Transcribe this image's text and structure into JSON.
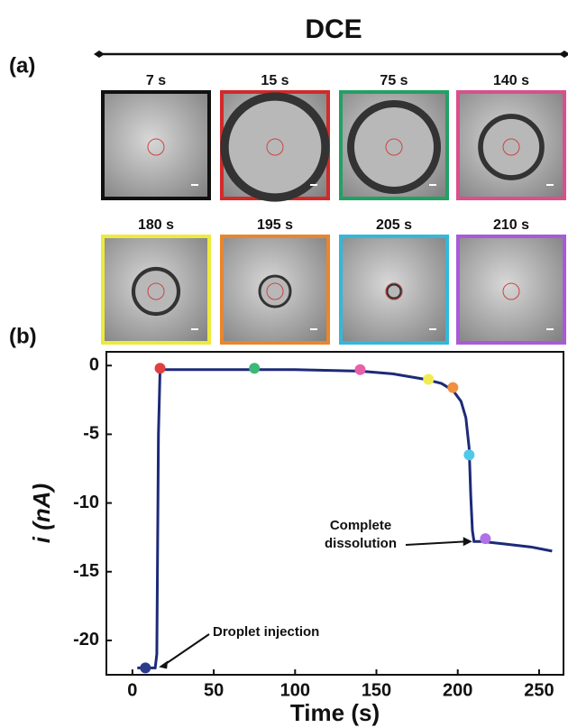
{
  "panel_a": {
    "label": "(a)",
    "title": "DCE",
    "frames": [
      {
        "label": "7 s",
        "color": "#111111"
      },
      {
        "label": "15 s",
        "color": "#d22a2a"
      },
      {
        "label": "75 s",
        "color": "#23a064"
      },
      {
        "label": "140 s",
        "color": "#d8508c"
      },
      {
        "label": "180 s",
        "color": "#eeea3c"
      },
      {
        "label": "195 s",
        "color": "#e8862e"
      },
      {
        "label": "205 s",
        "color": "#33b8d8"
      },
      {
        "label": "210 s",
        "color": "#a95ad8"
      }
    ]
  },
  "chart_data": {
    "type": "line",
    "panel_label": "(b)",
    "xlabel": "Time (s)",
    "ylabel": "i (nA)",
    "xlim": [
      -16,
      265
    ],
    "ylim": [
      -22.5,
      1
    ],
    "xticks": [
      0,
      50,
      100,
      150,
      200,
      250
    ],
    "yticks": [
      0,
      -5,
      -10,
      -15,
      -20
    ],
    "series": [
      {
        "color": "#1c2a78",
        "x": [
          3,
          8,
          14,
          15,
          16,
          17,
          20,
          40,
          75,
          100,
          140,
          160,
          180,
          190,
          197,
          202,
          205,
          207,
          208,
          209,
          210,
          215,
          230,
          245,
          258
        ],
        "values": [
          -22,
          -22,
          -22,
          -21,
          -5,
          -0.3,
          -0.3,
          -0.3,
          -0.3,
          -0.3,
          -0.4,
          -0.6,
          -1.0,
          -1.3,
          -1.8,
          -2.6,
          -3.8,
          -6,
          -9.5,
          -12,
          -12.8,
          -12.8,
          -13,
          -13.2,
          -13.5
        ]
      }
    ],
    "points": {
      "x": [
        8,
        17,
        75,
        140,
        182,
        197,
        207,
        217
      ],
      "values": [
        -22,
        -0.2,
        -0.2,
        -0.3,
        -1.0,
        -1.6,
        -6.5,
        -12.6
      ],
      "colors": [
        "#2a3c8c",
        "#e04040",
        "#3cb878",
        "#e860a8",
        "#f0ec50",
        "#f09040",
        "#50c8e8",
        "#b070e8"
      ]
    },
    "annotations": [
      {
        "text": "Droplet injection",
        "x": 14,
        "y": -22
      },
      {
        "text": "Complete dissolution",
        "x": 210,
        "y": -12.8
      }
    ]
  }
}
